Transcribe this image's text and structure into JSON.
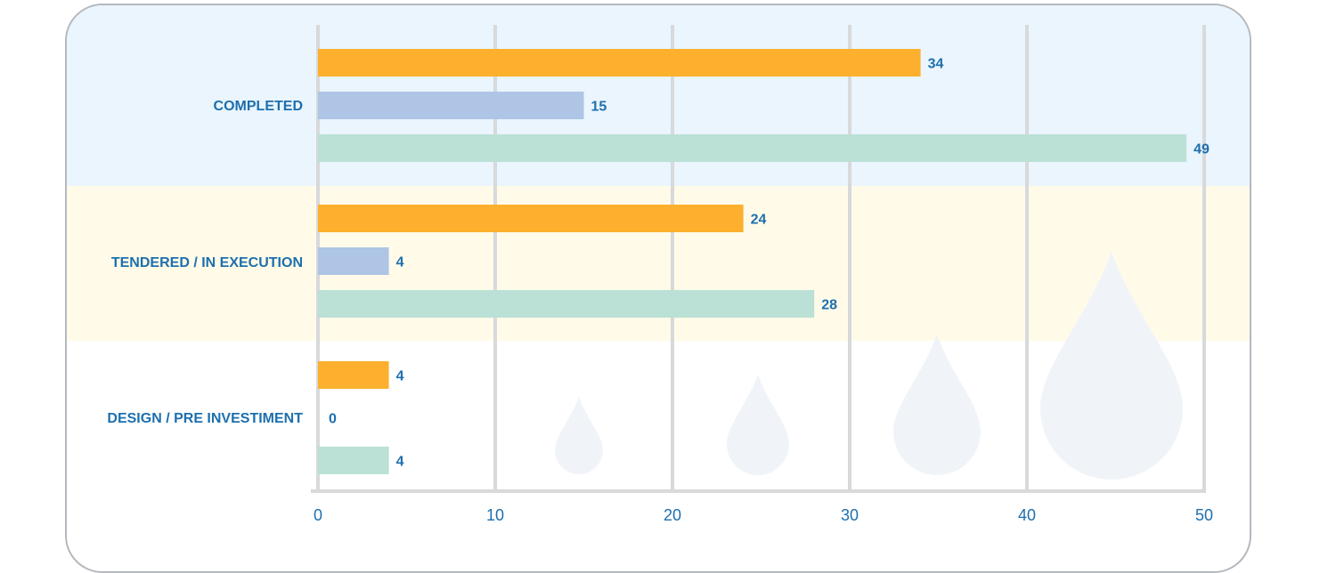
{
  "chart_data": {
    "type": "bar",
    "orientation": "horizontal",
    "categories": [
      "COMPLETED",
      "TENDERED / IN EXECUTION",
      "DESIGN / PRE INVESTIMENT"
    ],
    "series": [
      {
        "values": [
          34,
          24,
          4
        ]
      },
      {
        "values": [
          15,
          4,
          0
        ]
      },
      {
        "values": [
          49,
          28,
          4
        ]
      }
    ],
    "xlim": [
      0,
      50
    ],
    "xticks": [
      "0",
      "10",
      "20",
      "30",
      "40",
      "50"
    ],
    "grid": true,
    "legend": "none",
    "colors": {
      "series": [
        "#fcb02d",
        "#aec5e5",
        "#bbe0d6"
      ],
      "band_backgrounds": [
        "#eaf5fd",
        "#fffbe8",
        "#ffffff"
      ],
      "text": "#1d6fae",
      "grid": "#d7d9db",
      "drop": "#f0f4f9"
    }
  }
}
